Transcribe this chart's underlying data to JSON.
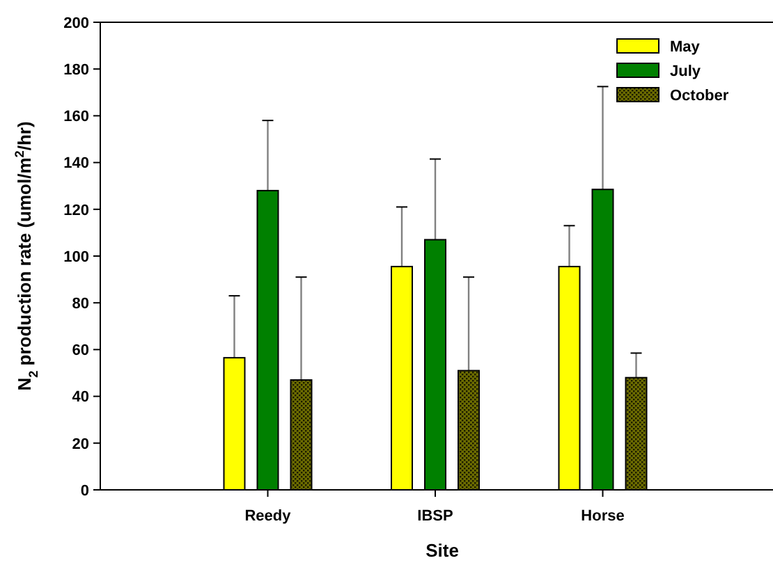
{
  "chart_data": {
    "type": "bar",
    "xlabel": "Site",
    "ylabel": "N$_{2}$ production rate (umol/m$^{2}$/hr)",
    "categories": [
      "Reedy",
      "IBSP",
      "Horse"
    ],
    "series": [
      {
        "name": "May",
        "color": "#ffff00",
        "values": [
          56.5,
          95.5,
          95.5
        ],
        "errors": [
          [
            56.5,
            83
          ],
          [
            95.5,
            121
          ],
          [
            95.5,
            113
          ]
        ]
      },
      {
        "name": "July",
        "color": "#008000",
        "values": [
          128,
          107,
          128.5
        ],
        "errors": [
          [
            128,
            158
          ],
          [
            107,
            141.5
          ],
          [
            128.5,
            172.5
          ]
        ]
      },
      {
        "name": "October",
        "color": "#6b6b00",
        "values": [
          47,
          51,
          48
        ],
        "errors": [
          [
            47,
            91
          ],
          [
            51,
            91
          ],
          [
            48,
            58.5
          ]
        ]
      }
    ],
    "ylim": [
      0,
      200
    ],
    "yticks": [
      0,
      20,
      40,
      60,
      80,
      100,
      120,
      140,
      160,
      180,
      200
    ],
    "grid": false,
    "legend": "top right"
  }
}
